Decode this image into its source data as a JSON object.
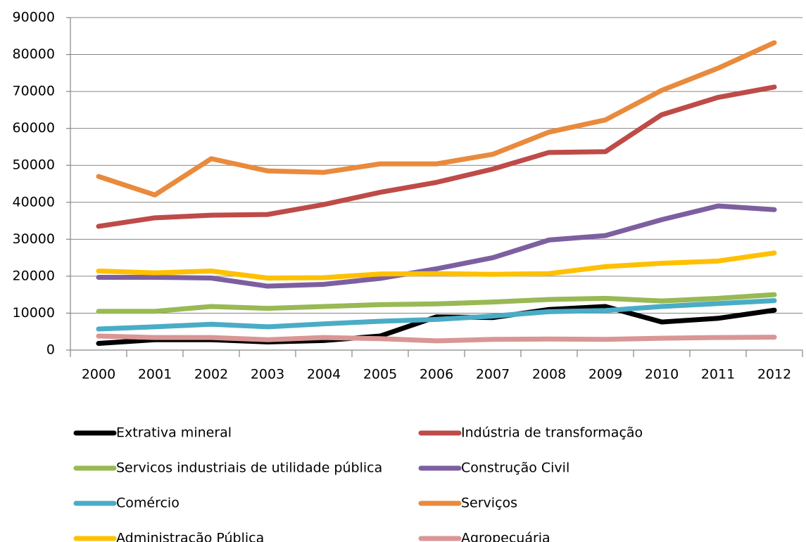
{
  "chart_data": {
    "type": "line",
    "categories": [
      "2000",
      "2001",
      "2002",
      "2003",
      "2004",
      "2005",
      "2006",
      "2007",
      "2008",
      "2009",
      "2010",
      "2011",
      "2012"
    ],
    "series": [
      {
        "name": "Extrativa mineral",
        "color": "#000000",
        "values": [
          1800,
          2800,
          2800,
          2200,
          2600,
          3800,
          9000,
          8800,
          11000,
          11800,
          7600,
          8600,
          10800
        ]
      },
      {
        "name": "Indústria de transformação",
        "color": "#be4b48",
        "values": [
          33500,
          35800,
          36500,
          36700,
          39400,
          42700,
          45400,
          49000,
          53500,
          53700,
          63700,
          68400,
          71200
        ]
      },
      {
        "name": "Servicos industriais de utilidade pública",
        "color": "#98b954",
        "values": [
          10500,
          10500,
          11800,
          11300,
          11800,
          12300,
          12500,
          13000,
          13700,
          14000,
          13300,
          14000,
          15000
        ]
      },
      {
        "name": "Construção Civil",
        "color": "#7d5fa0",
        "values": [
          19700,
          19700,
          19500,
          17300,
          17800,
          19400,
          22000,
          25000,
          29800,
          31000,
          35300,
          39000,
          38000
        ]
      },
      {
        "name": "Comércio",
        "color": "#4aacc6",
        "values": [
          5700,
          6300,
          7000,
          6300,
          7100,
          7800,
          8300,
          9200,
          10400,
          10700,
          11800,
          12600,
          13400
        ]
      },
      {
        "name": "Serviços",
        "color": "#e98a3c",
        "values": [
          47000,
          42000,
          51800,
          48500,
          48100,
          50400,
          50400,
          53000,
          59000,
          62300,
          70300,
          76300,
          83200
        ]
      },
      {
        "name": "Administração Pública",
        "color": "#ffc000",
        "values": [
          21400,
          20900,
          21400,
          19500,
          19600,
          20600,
          20700,
          20500,
          20700,
          22600,
          23500,
          24100,
          26300
        ]
      },
      {
        "name": "Agropecuária",
        "color": "#d99694",
        "values": [
          3800,
          3400,
          3400,
          2800,
          3400,
          3100,
          2500,
          2900,
          3000,
          2900,
          3200,
          3400,
          3500
        ]
      }
    ],
    "ylim": [
      0,
      90000
    ],
    "yticks": [
      0,
      10000,
      20000,
      30000,
      40000,
      50000,
      60000,
      70000,
      80000,
      90000
    ],
    "grid": true
  }
}
